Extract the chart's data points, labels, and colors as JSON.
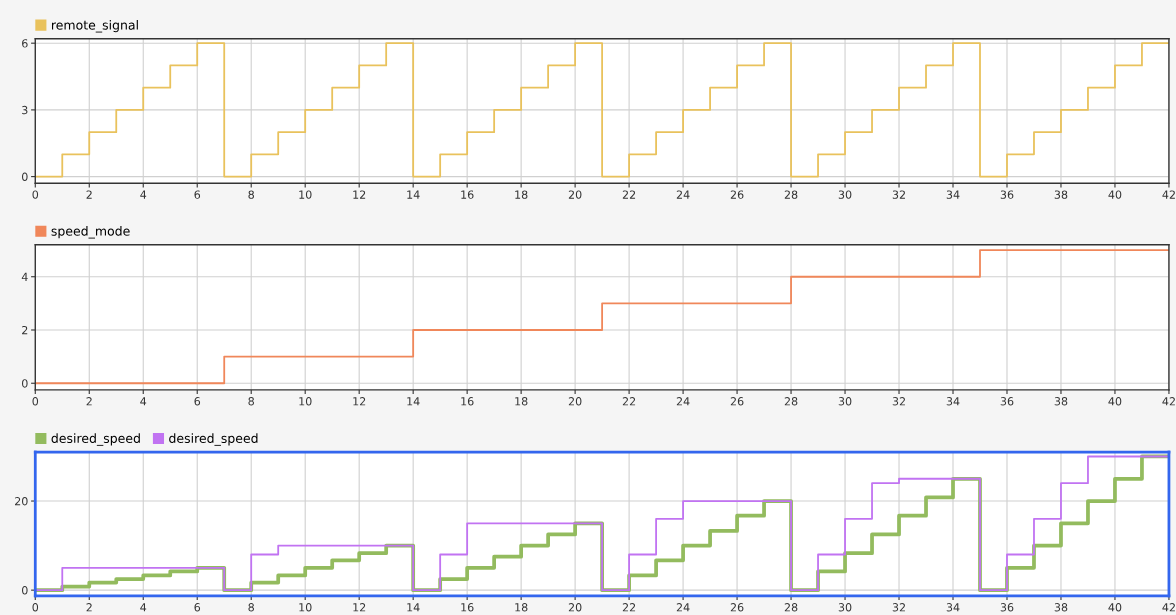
{
  "chart_data": [
    {
      "type": "step",
      "x": [
        0,
        1,
        2,
        3,
        4,
        5,
        6,
        7,
        8,
        9,
        10,
        11,
        12,
        13,
        14,
        15,
        16,
        17,
        18,
        19,
        20,
        21,
        22,
        23,
        24,
        25,
        26,
        27,
        28,
        29,
        30,
        31,
        32,
        33,
        34,
        35,
        36,
        37,
        38,
        39,
        40,
        41,
        42
      ],
      "series": [
        {
          "name": "remote_signal",
          "color": "#e9c25c",
          "values": [
            0,
            1,
            2,
            3,
            4,
            5,
            6,
            0,
            1,
            2,
            3,
            4,
            5,
            6,
            0,
            1,
            2,
            3,
            4,
            5,
            6,
            0,
            1,
            2,
            3,
            4,
            5,
            6,
            0,
            1,
            2,
            3,
            4,
            5,
            6,
            0,
            1,
            2,
            3,
            4,
            5,
            6,
            6
          ]
        }
      ],
      "xlim": [
        0,
        42
      ],
      "xticks": [
        0,
        2,
        4,
        6,
        8,
        10,
        12,
        14,
        16,
        18,
        20,
        22,
        24,
        26,
        28,
        30,
        32,
        34,
        36,
        38,
        40,
        42
      ],
      "ylim": [
        -0.3,
        6.2
      ],
      "yticks": [
        0,
        3,
        6
      ],
      "grid": true,
      "legend": "top left"
    },
    {
      "type": "step",
      "x": [
        0,
        7,
        14,
        21,
        28,
        35,
        42
      ],
      "series": [
        {
          "name": "speed_mode",
          "color": "#f0875a",
          "values": [
            0,
            1,
            2,
            3,
            4,
            5,
            5
          ]
        }
      ],
      "xlim": [
        0,
        42
      ],
      "xticks": [
        0,
        2,
        4,
        6,
        8,
        10,
        12,
        14,
        16,
        18,
        20,
        22,
        24,
        26,
        28,
        30,
        32,
        34,
        36,
        38,
        40,
        42
      ],
      "ylim": [
        -0.25,
        5.2
      ],
      "yticks": [
        0,
        2,
        4
      ],
      "grid": true,
      "legend": "top left"
    },
    {
      "type": "step",
      "x": [
        0,
        1,
        2,
        3,
        4,
        5,
        6,
        7,
        8,
        9,
        10,
        11,
        12,
        13,
        14,
        15,
        16,
        17,
        18,
        19,
        20,
        21,
        22,
        23,
        24,
        25,
        26,
        27,
        28,
        29,
        30,
        31,
        32,
        33,
        34,
        35,
        36,
        37,
        38,
        39,
        40,
        41,
        42
      ],
      "series": [
        {
          "name": "desired_speed",
          "color": "#93bb5e",
          "values": [
            0,
            0.8,
            1.7,
            2.5,
            3.3,
            4.2,
            5,
            0,
            1.7,
            3.3,
            5,
            6.7,
            8.3,
            10,
            0,
            2.5,
            5,
            7.5,
            10,
            12.5,
            15,
            0,
            3.3,
            6.7,
            10,
            13.3,
            16.7,
            20,
            0,
            4.2,
            8.3,
            12.5,
            16.7,
            20.8,
            25,
            0,
            5,
            10,
            15,
            20,
            25,
            30,
            30
          ]
        },
        {
          "name": "desired_speed",
          "color": "#c173f2",
          "values": [
            0,
            5,
            5,
            5,
            5,
            5,
            5,
            0,
            8,
            10,
            10,
            10,
            10,
            10,
            0,
            8,
            15,
            15,
            15,
            15,
            15,
            0,
            8,
            16,
            20,
            20,
            20,
            20,
            0,
            8,
            16,
            24,
            25,
            25,
            25,
            0,
            8,
            16,
            24,
            30,
            30,
            30,
            30
          ]
        }
      ],
      "xlim": [
        0,
        42
      ],
      "xticks": [
        0,
        2,
        4,
        6,
        8,
        10,
        12,
        14,
        16,
        18,
        20,
        22,
        24,
        26,
        28,
        30,
        32,
        34,
        36,
        38,
        40,
        42
      ],
      "ylim": [
        -1.3,
        31
      ],
      "yticks": [
        0,
        20
      ],
      "grid": true,
      "legend": "top left"
    }
  ]
}
